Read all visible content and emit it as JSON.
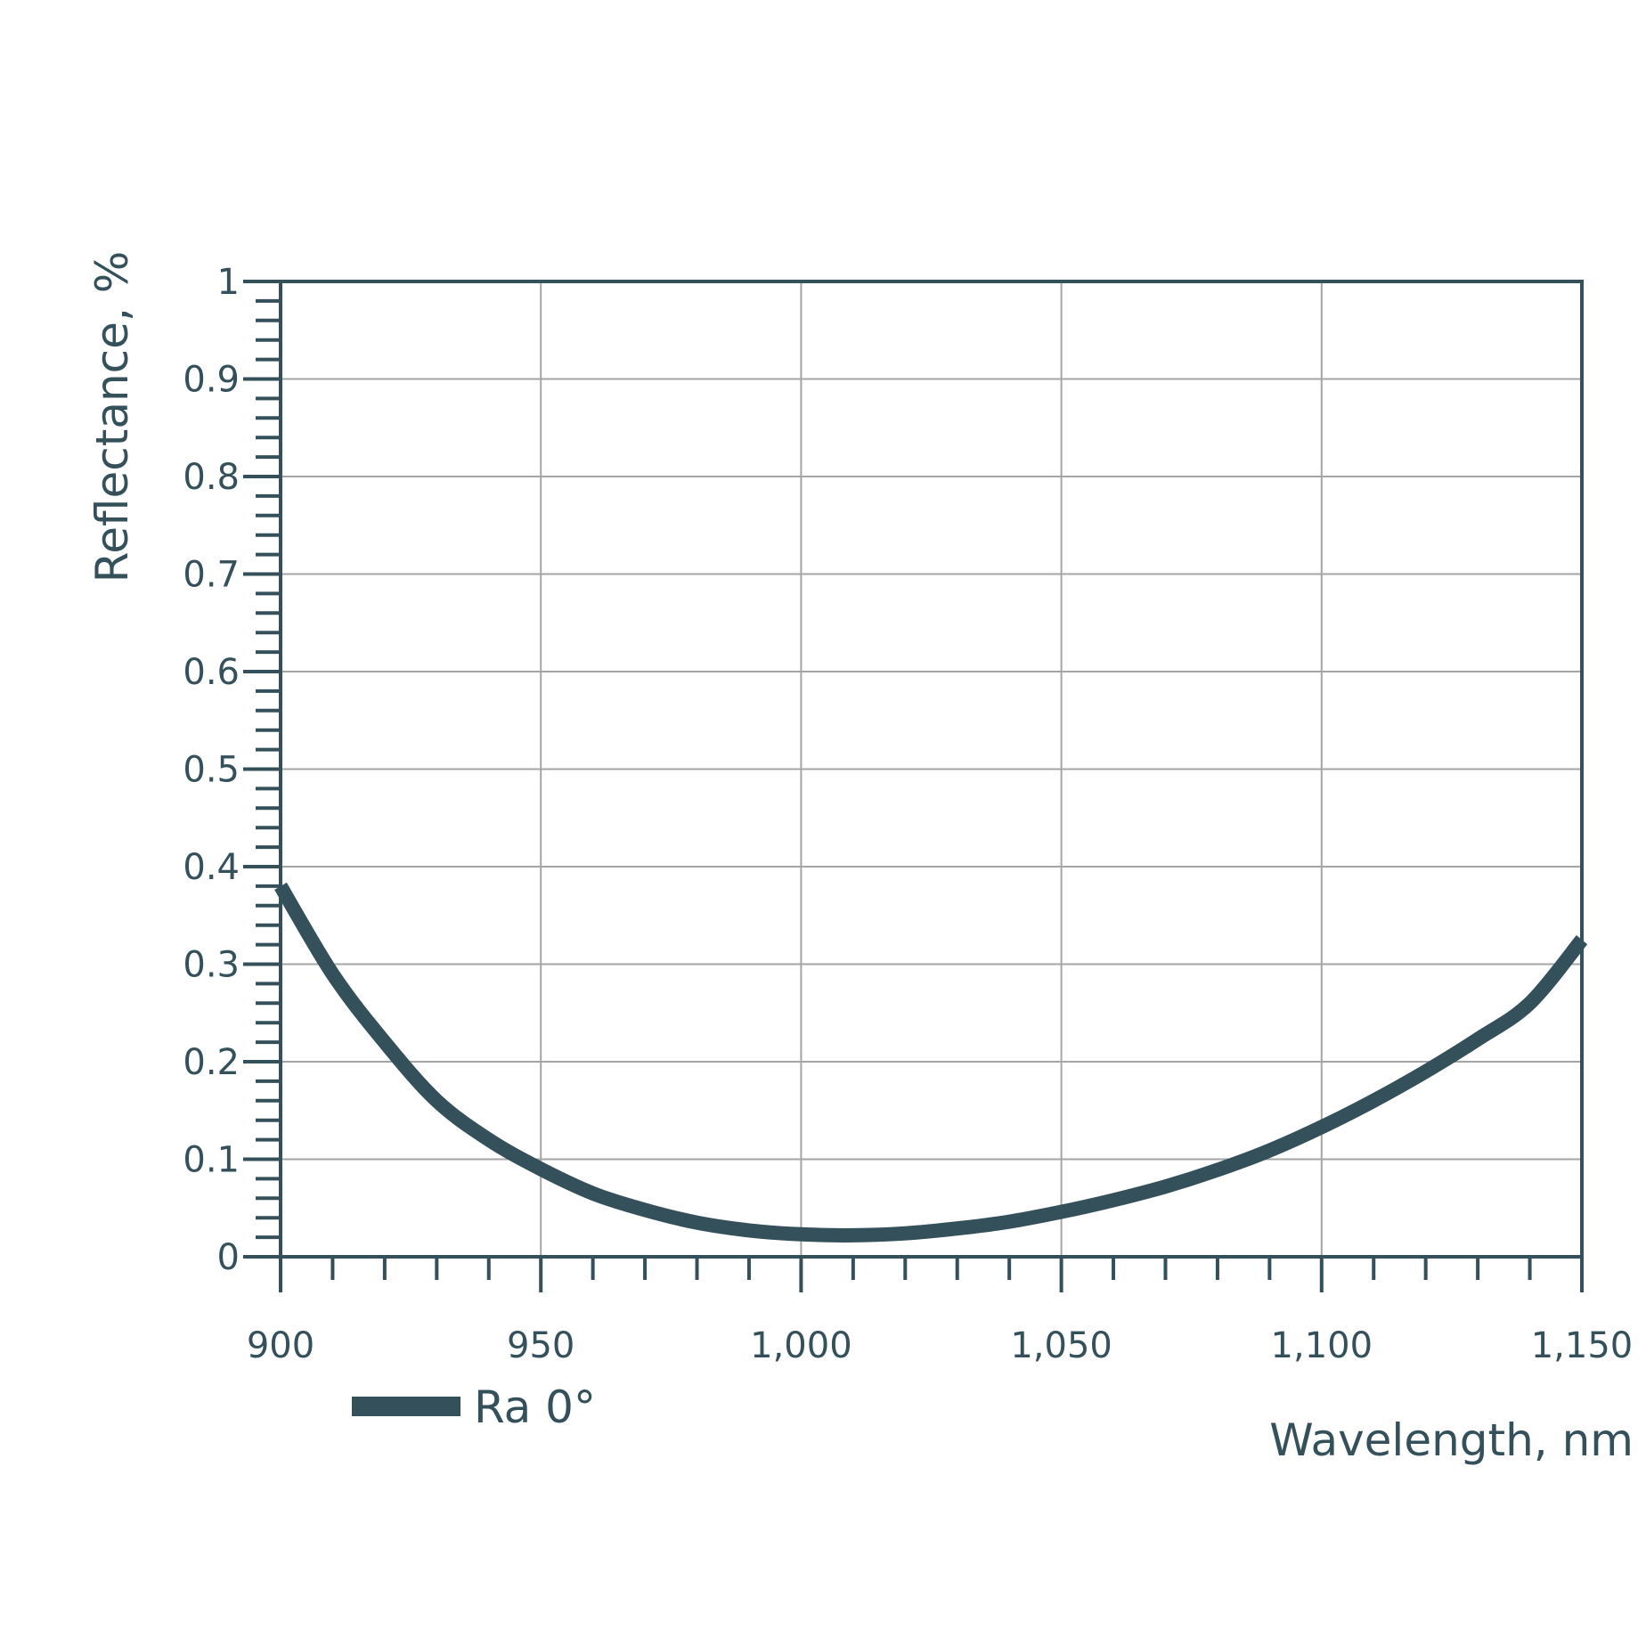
{
  "chart_data": {
    "type": "line",
    "xlabel": "Wavelength, nm",
    "ylabel": "Reflectance, %",
    "xlim": [
      900,
      1150
    ],
    "ylim": [
      0,
      1
    ],
    "grid": true,
    "x_ticks": [
      900,
      950,
      1000,
      1050,
      1100,
      1150
    ],
    "x_tick_labels": [
      "900",
      "950",
      "1,000",
      "1,050",
      "1,100",
      "1,150"
    ],
    "y_ticks": [
      0,
      0.1,
      0.2,
      0.3,
      0.4,
      0.5,
      0.6,
      0.7,
      0.8,
      0.9,
      1
    ],
    "y_tick_labels": [
      "0",
      "0.1",
      "0.2",
      "0.3",
      "0.4",
      "0.5",
      "0.6",
      "0.7",
      "0.8",
      "0.9",
      "1"
    ],
    "legend_position": "bottom-left",
    "series": [
      {
        "name": "Ra 0°",
        "color": "#34505b",
        "x": [
          900,
          910,
          920,
          930,
          940,
          950,
          960,
          970,
          980,
          990,
          1000,
          1010,
          1020,
          1030,
          1040,
          1050,
          1060,
          1070,
          1080,
          1090,
          1100,
          1110,
          1120,
          1130,
          1140,
          1150
        ],
        "y": [
          0.38,
          0.29,
          0.22,
          0.16,
          0.12,
          0.09,
          0.065,
          0.048,
          0.035,
          0.027,
          0.023,
          0.022,
          0.024,
          0.029,
          0.036,
          0.046,
          0.058,
          0.072,
          0.089,
          0.109,
          0.133,
          0.16,
          0.19,
          0.223,
          0.26,
          0.325
        ]
      }
    ]
  }
}
